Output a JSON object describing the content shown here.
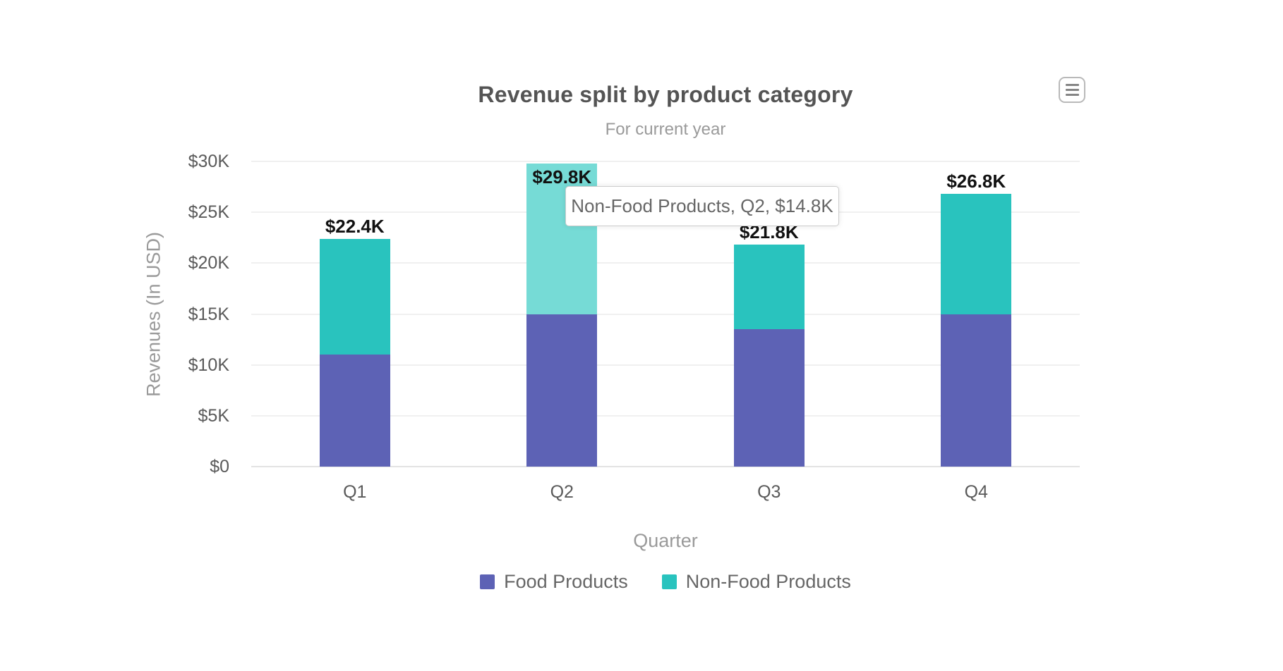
{
  "header": {
    "title": "Revenue split by product category",
    "subtitle": "For current year"
  },
  "menu": {
    "icon": "hamburger-menu-icon"
  },
  "y_axis": {
    "title": "Revenues (In USD)",
    "tick_labels": [
      "$30K",
      "$25K",
      "$20K",
      "$15K",
      "$10K",
      "$5K",
      "$0"
    ]
  },
  "x_axis": {
    "title": "Quarter"
  },
  "legend": {
    "items": [
      {
        "label": "Food Products",
        "color": "#5d62b5"
      },
      {
        "label": "Non-Food Products",
        "color": "#29c3be"
      }
    ]
  },
  "tooltip": {
    "text": "Non-Food Products, Q2, $14.8K"
  },
  "colors": {
    "food": "#5d62b5",
    "non_food": "#29c3be",
    "non_food_hovered": "#76dbd6",
    "title_text": "#545454",
    "axis_text": "#5a5a5a",
    "muted_text": "#9a9a9a",
    "legend_text": "#666666",
    "gridline": "#f0f0f0"
  },
  "chart_data": {
    "type": "bar",
    "stacked": true,
    "title": "Revenue split by product category",
    "subtitle": "For current year",
    "xlabel": "Quarter",
    "ylabel": "Revenues (In USD)",
    "categories": [
      "Q1",
      "Q2",
      "Q3",
      "Q4"
    ],
    "series": [
      {
        "name": "Food Products",
        "color": "#5d62b5",
        "values": [
          11000,
          15000,
          13500,
          15000
        ]
      },
      {
        "name": "Non-Food Products",
        "color": "#29c3be",
        "values": [
          11400,
          14800,
          8300,
          11800
        ]
      }
    ],
    "totals_labels": [
      "$22.4K",
      "$29.8K",
      "$21.8K",
      "$26.8K"
    ],
    "ylim": [
      0,
      30000
    ],
    "y_tick_step": 5000,
    "number_prefix": "$",
    "grid": true,
    "legend_position": "bottom",
    "highlight": {
      "series": "Non-Food Products",
      "category": "Q2",
      "color": "#76dbd6",
      "value_label": "$14.8K"
    }
  }
}
